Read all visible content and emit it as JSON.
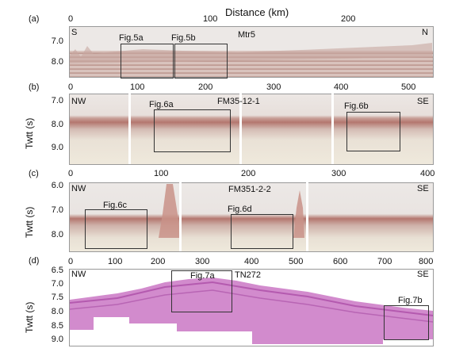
{
  "header": {
    "title": "Distance (km)"
  },
  "panels": {
    "a": {
      "label": "(a)",
      "x_ticks": [
        "0",
        "100",
        "200"
      ],
      "y_ticks": [
        "7.0",
        "8.0"
      ],
      "line_name": "Mtr5",
      "dir_left": "S",
      "dir_right": "N",
      "figs": [
        "Fig.5a",
        "Fig.5b"
      ]
    },
    "b": {
      "label": "(b)",
      "x_ticks": [
        "0",
        "100",
        "200",
        "300",
        "400",
        "500"
      ],
      "y_ticks": [
        "7.0",
        "8.0",
        "9.0"
      ],
      "ylabel": "Twtt (s)",
      "line_name": "FM35-12-1",
      "dir_left": "NW",
      "dir_right": "SE",
      "figs": [
        "Fig.6a",
        "Fig.6b"
      ]
    },
    "c": {
      "label": "(c)",
      "x_ticks": [
        "0",
        "100",
        "200",
        "300",
        "400"
      ],
      "y_ticks": [
        "6.0",
        "7.0",
        "8.0"
      ],
      "ylabel": "Twtt (s)",
      "line_name": "FM351-2-2",
      "dir_left": "NW",
      "dir_right": "SE",
      "figs": [
        "Fig.6c",
        "Fig.6d"
      ]
    },
    "d": {
      "label": "(d)",
      "x_ticks": [
        "0",
        "100",
        "200",
        "300",
        "400",
        "500",
        "600",
        "700",
        "800"
      ],
      "y_ticks": [
        "6.5",
        "7.0",
        "7.5",
        "8.0",
        "8.5",
        "9.0"
      ],
      "ylabel": "Twtt (s)",
      "line_name": "TN272",
      "dir_left": "NW",
      "dir_right": "SE",
      "figs": [
        "Fig.7a",
        "Fig.7b"
      ]
    }
  },
  "colors": {
    "seismic_red": "#b4776f",
    "seismic_purple": "#c06fbd",
    "box_border": "#333333"
  }
}
